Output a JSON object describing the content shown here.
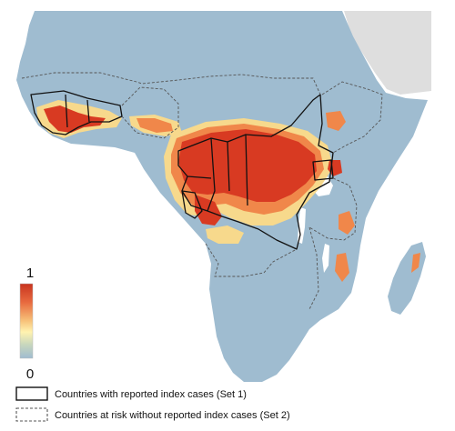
{
  "figure": {
    "colorbar": {
      "max_label": "1",
      "min_label": "0",
      "colors": [
        "#c8341f",
        "#e86a3f",
        "#f7c27a",
        "#fff3b0",
        "#c7d6bd",
        "#9fbcd0"
      ]
    },
    "legend": {
      "items": [
        {
          "label": "Countries with reported index cases (Set 1)",
          "style": "solid"
        },
        {
          "label": "Countries at risk without reported index cases (Set 2)",
          "style": "dashed"
        }
      ]
    },
    "colors": {
      "ocean": "#ffffff",
      "land_low": "#9fbcd0",
      "land_other": "#dedede",
      "hotspot_high": "#d83a22",
      "hotspot_mid": "#f0874a",
      "hotspot_low": "#f7d98c",
      "border_solid": "#111111",
      "border_dashed": "#555555"
    }
  }
}
